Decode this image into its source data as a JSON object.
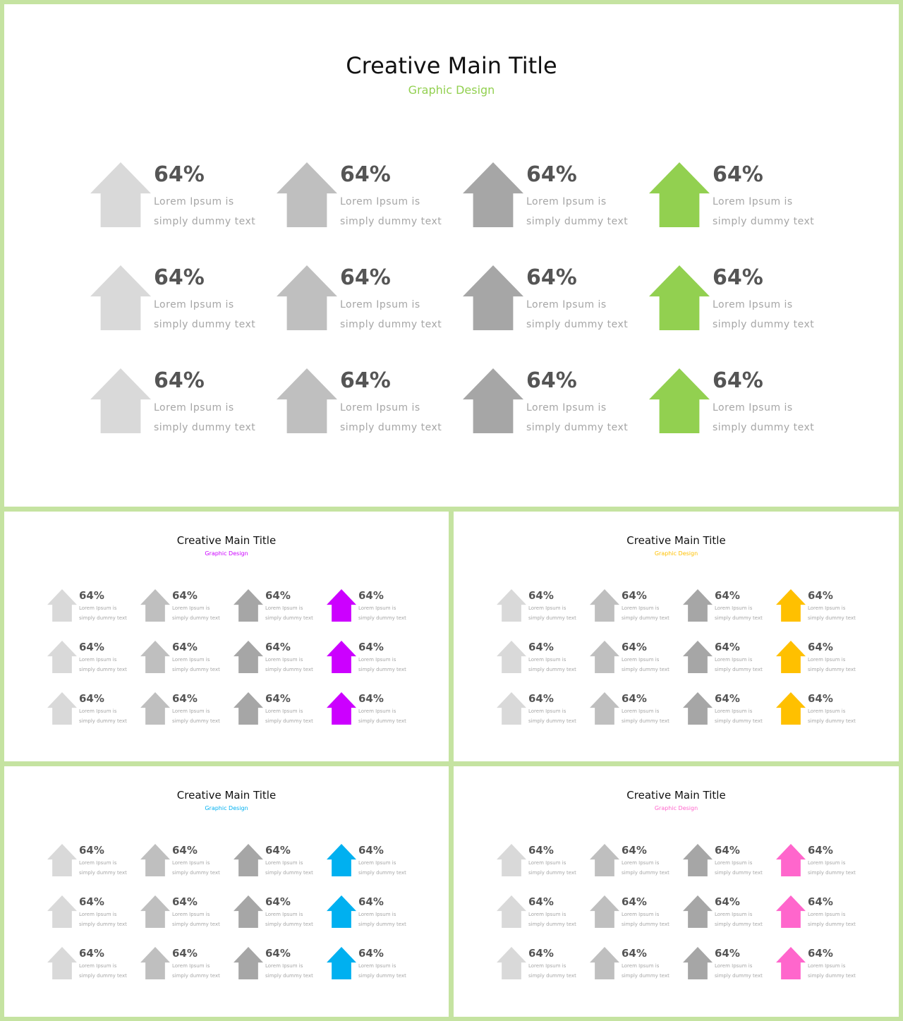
{
  "slides": [
    {
      "title": "Creative Main Title",
      "subtitle": "Graphic Design",
      "accent": "#92d050",
      "arrow_colors": [
        "#d9d9d9",
        "#bfbfbf",
        "#a6a6a6"
      ],
      "rows": [
        [
          {
            "value": "64%",
            "line1": "Lorem Ipsum is",
            "line2": "simply dummy text"
          },
          {
            "value": "64%",
            "line1": "Lorem Ipsum is",
            "line2": "simply dummy text"
          },
          {
            "value": "64%",
            "line1": "Lorem Ipsum is",
            "line2": "simply dummy text"
          },
          {
            "value": "64%",
            "line1": "Lorem Ipsum is",
            "line2": "simply dummy text"
          }
        ],
        [
          {
            "value": "64%",
            "line1": "Lorem Ipsum is",
            "line2": "simply dummy text"
          },
          {
            "value": "64%",
            "line1": "Lorem Ipsum is",
            "line2": "simply dummy text"
          },
          {
            "value": "64%",
            "line1": "Lorem Ipsum is",
            "line2": "simply dummy text"
          },
          {
            "value": "64%",
            "line1": "Lorem Ipsum is",
            "line2": "simply dummy text"
          }
        ],
        [
          {
            "value": "64%",
            "line1": "Lorem Ipsum is",
            "line2": "simply dummy text"
          },
          {
            "value": "64%",
            "line1": "Lorem Ipsum is",
            "line2": "simply dummy text"
          },
          {
            "value": "64%",
            "line1": "Lorem Ipsum is",
            "line2": "simply dummy text"
          },
          {
            "value": "64%",
            "line1": "Lorem Ipsum is",
            "line2": "simply dummy text"
          }
        ]
      ]
    },
    {
      "title": "Creative Main Title",
      "subtitle": "Graphic Design",
      "accent": "#cc00ff",
      "arrow_colors": [
        "#d9d9d9",
        "#bfbfbf",
        "#a6a6a6"
      ],
      "rows": [
        [
          {
            "value": "64%",
            "line1": "Lorem Ipsum is",
            "line2": "simply dummy text"
          },
          {
            "value": "64%",
            "line1": "Lorem Ipsum is",
            "line2": "simply dummy text"
          },
          {
            "value": "64%",
            "line1": "Lorem Ipsum is",
            "line2": "simply dummy text"
          },
          {
            "value": "64%",
            "line1": "Lorem Ipsum is",
            "line2": "simply dummy text"
          }
        ],
        [
          {
            "value": "64%",
            "line1": "Lorem Ipsum is",
            "line2": "simply dummy text"
          },
          {
            "value": "64%",
            "line1": "Lorem Ipsum is",
            "line2": "simply dummy text"
          },
          {
            "value": "64%",
            "line1": "Lorem Ipsum is",
            "line2": "simply dummy text"
          },
          {
            "value": "64%",
            "line1": "Lorem Ipsum is",
            "line2": "simply dummy text"
          }
        ],
        [
          {
            "value": "64%",
            "line1": "Lorem Ipsum is",
            "line2": "simply dummy text"
          },
          {
            "value": "64%",
            "line1": "Lorem Ipsum is",
            "line2": "simply dummy text"
          },
          {
            "value": "64%",
            "line1": "Lorem Ipsum is",
            "line2": "simply dummy text"
          },
          {
            "value": "64%",
            "line1": "Lorem Ipsum is",
            "line2": "simply dummy text"
          }
        ]
      ]
    },
    {
      "title": "Creative Main Title",
      "subtitle": "Graphic Design",
      "accent": "#ffc000",
      "arrow_colors": [
        "#d9d9d9",
        "#bfbfbf",
        "#a6a6a6"
      ],
      "rows": [
        [
          {
            "value": "64%",
            "line1": "Lorem Ipsum is",
            "line2": "simply dummy text"
          },
          {
            "value": "64%",
            "line1": "Lorem Ipsum is",
            "line2": "simply dummy text"
          },
          {
            "value": "64%",
            "line1": "Lorem Ipsum is",
            "line2": "simply dummy text"
          },
          {
            "value": "64%",
            "line1": "Lorem Ipsum is",
            "line2": "simply dummy text"
          }
        ],
        [
          {
            "value": "64%",
            "line1": "Lorem Ipsum is",
            "line2": "simply dummy text"
          },
          {
            "value": "64%",
            "line1": "Lorem Ipsum is",
            "line2": "simply dummy text"
          },
          {
            "value": "64%",
            "line1": "Lorem Ipsum is",
            "line2": "simply dummy text"
          },
          {
            "value": "64%",
            "line1": "Lorem Ipsum is",
            "line2": "simply dummy text"
          }
        ],
        [
          {
            "value": "64%",
            "line1": "Lorem Ipsum is",
            "line2": "simply dummy text"
          },
          {
            "value": "64%",
            "line1": "Lorem Ipsum is",
            "line2": "simply dummy text"
          },
          {
            "value": "64%",
            "line1": "Lorem Ipsum is",
            "line2": "simply dummy text"
          },
          {
            "value": "64%",
            "line1": "Lorem Ipsum is",
            "line2": "simply dummy text"
          }
        ]
      ]
    },
    {
      "title": "Creative Main Title",
      "subtitle": "Graphic Design",
      "accent": "#00b0f0",
      "arrow_colors": [
        "#d9d9d9",
        "#bfbfbf",
        "#a6a6a6"
      ],
      "rows": [
        [
          {
            "value": "64%",
            "line1": "Lorem Ipsum is",
            "line2": "simply dummy text"
          },
          {
            "value": "64%",
            "line1": "Lorem Ipsum is",
            "line2": "simply dummy text"
          },
          {
            "value": "64%",
            "line1": "Lorem Ipsum is",
            "line2": "simply dummy text"
          },
          {
            "value": "64%",
            "line1": "Lorem Ipsum is",
            "line2": "simply dummy text"
          }
        ],
        [
          {
            "value": "64%",
            "line1": "Lorem Ipsum is",
            "line2": "simply dummy text"
          },
          {
            "value": "64%",
            "line1": "Lorem Ipsum is",
            "line2": "simply dummy text"
          },
          {
            "value": "64%",
            "line1": "Lorem Ipsum is",
            "line2": "simply dummy text"
          },
          {
            "value": "64%",
            "line1": "Lorem Ipsum is",
            "line2": "simply dummy text"
          }
        ],
        [
          {
            "value": "64%",
            "line1": "Lorem Ipsum is",
            "line2": "simply dummy text"
          },
          {
            "value": "64%",
            "line1": "Lorem Ipsum is",
            "line2": "simply dummy text"
          },
          {
            "value": "64%",
            "line1": "Lorem Ipsum is",
            "line2": "simply dummy text"
          },
          {
            "value": "64%",
            "line1": "Lorem Ipsum is",
            "line2": "simply dummy text"
          }
        ]
      ]
    },
    {
      "title": "Creative Main Title",
      "subtitle": "Graphic Design",
      "accent": "#ff66cc",
      "arrow_colors": [
        "#d9d9d9",
        "#bfbfbf",
        "#a6a6a6"
      ],
      "rows": [
        [
          {
            "value": "64%",
            "line1": "Lorem Ipsum is",
            "line2": "simply dummy text"
          },
          {
            "value": "64%",
            "line1": "Lorem Ipsum is",
            "line2": "simply dummy text"
          },
          {
            "value": "64%",
            "line1": "Lorem Ipsum is",
            "line2": "simply dummy text"
          },
          {
            "value": "64%",
            "line1": "Lorem Ipsum is",
            "line2": "simply dummy text"
          }
        ],
        [
          {
            "value": "64%",
            "line1": "Lorem Ipsum is",
            "line2": "simply dummy text"
          },
          {
            "value": "64%",
            "line1": "Lorem Ipsum is",
            "line2": "simply dummy text"
          },
          {
            "value": "64%",
            "line1": "Lorem Ipsum is",
            "line2": "simply dummy text"
          },
          {
            "value": "64%",
            "line1": "Lorem Ipsum is",
            "line2": "simply dummy text"
          }
        ],
        [
          {
            "value": "64%",
            "line1": "Lorem Ipsum is",
            "line2": "simply dummy text"
          },
          {
            "value": "64%",
            "line1": "Lorem Ipsum is",
            "line2": "simply dummy text"
          },
          {
            "value": "64%",
            "line1": "Lorem Ipsum is",
            "line2": "simply dummy text"
          },
          {
            "value": "64%",
            "line1": "Lorem Ipsum is",
            "line2": "simply dummy text"
          }
        ]
      ]
    }
  ]
}
